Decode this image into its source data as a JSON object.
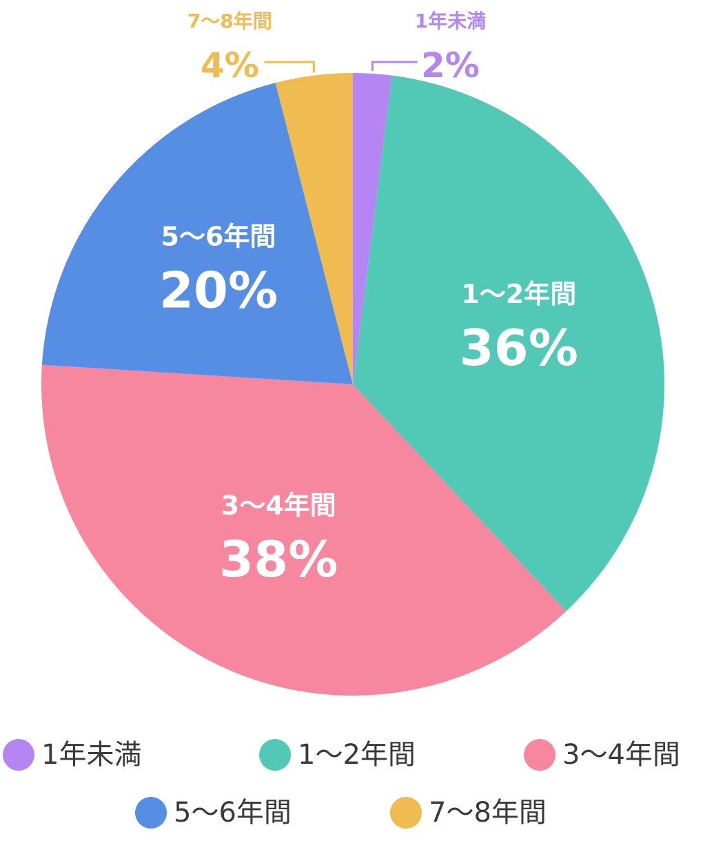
{
  "chart_data": {
    "type": "pie",
    "title": "",
    "slices": [
      {
        "name": "1年未満",
        "label": "1年未満",
        "value": 2,
        "display": "2%",
        "color": "#B586F3",
        "label_position": "outside-top-right"
      },
      {
        "name": "1〜2年間",
        "label": "1〜2年間",
        "value": 36,
        "display": "36%",
        "color": "#52C9B6",
        "label_position": "inside"
      },
      {
        "name": "3〜4年間",
        "label": "3〜4年間",
        "value": 38,
        "display": "38%",
        "color": "#F7879E",
        "label_position": "inside"
      },
      {
        "name": "5〜6年間",
        "label": "5〜6年間",
        "value": 20,
        "display": "20%",
        "color": "#558EE3",
        "label_position": "inside"
      },
      {
        "name": "7〜8年間",
        "label": "7〜8年間",
        "value": 4,
        "display": "4%",
        "color": "#F0BB50",
        "label_position": "outside-top-left"
      }
    ],
    "legend": {
      "placement": "bottom",
      "items": [
        {
          "label": "1年未満",
          "color": "#B586F3"
        },
        {
          "label": "1〜2年間",
          "color": "#52C9B6"
        },
        {
          "label": "3〜4年間",
          "color": "#F7879E"
        },
        {
          "label": "5〜6年間",
          "color": "#558EE3"
        },
        {
          "label": "7〜8年間",
          "color": "#F0BB50"
        }
      ]
    }
  }
}
